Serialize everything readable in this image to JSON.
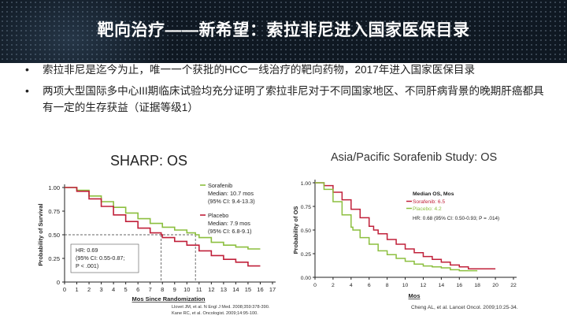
{
  "slide": {
    "title": "靶向治疗——新希望：索拉非尼进入国家医保目录",
    "bullets": [
      {
        "symbol": "•",
        "text": "索拉非尼是迄今为止，唯一一个获批的HCC一线治疗的靶向药物，2017年进入国家医保目录"
      },
      {
        "symbol": "•",
        "text": "两项大型国际多中心III期临床试验均充分证明了索拉非尼对于不同国家地区、不同肝病背景的晚期肝癌都具有一定的生存获益（证据等级1）"
      }
    ]
  },
  "chart_data": [
    {
      "type": "line",
      "title": "SHARP: OS",
      "xlabel": "Mos Since Randomization",
      "ylabel": "Probability of Survival",
      "xlim": [
        0,
        17
      ],
      "ylim": [
        0,
        1
      ],
      "xticks": [
        "0",
        "1",
        "2",
        "3",
        "4",
        "5",
        "6",
        "7",
        "8",
        "9",
        "10",
        "11",
        "12",
        "13",
        "14",
        "15",
        "16",
        "17"
      ],
      "yticks": [
        "0",
        "0.25",
        "0.50",
        "0.75",
        "1.00"
      ],
      "series": [
        {
          "name": "Sorafenib",
          "color": "#8cbf3f",
          "x": [
            0,
            1,
            2,
            3,
            4,
            5,
            6,
            7,
            8,
            9,
            10,
            10.7,
            11,
            12,
            13,
            14,
            15,
            16
          ],
          "y": [
            1.0,
            0.97,
            0.91,
            0.85,
            0.79,
            0.73,
            0.67,
            0.62,
            0.58,
            0.55,
            0.52,
            0.5,
            0.47,
            0.42,
            0.39,
            0.37,
            0.35,
            0.35
          ]
        },
        {
          "name": "Placebo",
          "color": "#c0203a",
          "x": [
            0,
            1,
            2,
            3,
            4,
            5,
            6,
            7,
            7.9,
            8,
            9,
            10,
            11,
            12,
            13,
            14,
            15,
            16
          ],
          "y": [
            1.0,
            0.96,
            0.88,
            0.8,
            0.71,
            0.64,
            0.57,
            0.52,
            0.5,
            0.47,
            0.43,
            0.39,
            0.33,
            0.28,
            0.24,
            0.21,
            0.17,
            0.17
          ]
        }
      ],
      "legend": [
        {
          "name": "Sorafenib",
          "lines": [
            "Median: 10.7 mos",
            "(95% CI: 9.4-13.3)"
          ]
        },
        {
          "name": "Placebo",
          "lines": [
            "Median: 7.9 mos",
            "(95% CI: 6.8-9.1)"
          ]
        }
      ],
      "annotation": [
        "HR: 0.69",
        "(95% CI: 0.55-0.87;",
        "P < .001)"
      ],
      "reference": [
        "Llovet JM, et al. N Engl J Med. 2008;359:378-390.",
        "Kane RC, et al. Oncologist. 2009;14:95-100."
      ]
    },
    {
      "type": "line",
      "title": "Asia/Pacific Sorafenib Study: OS",
      "xlabel": "Mos",
      "ylabel": "Probability of OS",
      "xlim": [
        0,
        22
      ],
      "ylim": [
        0,
        1
      ],
      "xticks": [
        "0",
        "2",
        "4",
        "6",
        "8",
        "10",
        "12",
        "14",
        "16",
        "18",
        "20",
        "22"
      ],
      "yticks": [
        "0.00",
        "0.25",
        "0.50",
        "0.75",
        "1.00"
      ],
      "series": [
        {
          "name": "Sorafenib",
          "color": "#c0203a",
          "x": [
            0,
            1,
            2,
            3,
            4,
            5,
            6,
            6.5,
            7,
            8,
            9,
            10,
            11,
            12,
            13,
            14,
            15,
            16,
            17,
            18,
            19,
            20
          ],
          "y": [
            1.0,
            0.97,
            0.9,
            0.82,
            0.72,
            0.63,
            0.54,
            0.5,
            0.46,
            0.4,
            0.35,
            0.3,
            0.26,
            0.22,
            0.19,
            0.16,
            0.13,
            0.11,
            0.09,
            0.09,
            0.09,
            0.09
          ]
        },
        {
          "name": "Placebo",
          "color": "#8cbf3f",
          "x": [
            0,
            1,
            2,
            3,
            4,
            4.2,
            5,
            6,
            7,
            8,
            9,
            10,
            11,
            12,
            13,
            14,
            15,
            16,
            17,
            18
          ],
          "y": [
            1.0,
            0.93,
            0.8,
            0.66,
            0.53,
            0.5,
            0.42,
            0.35,
            0.28,
            0.24,
            0.2,
            0.17,
            0.14,
            0.12,
            0.11,
            0.1,
            0.08,
            0.07,
            0.07,
            0.07
          ]
        }
      ],
      "legend_title": "Median OS, Mos",
      "legend": [
        {
          "name": "Sorafenib: 6.5"
        },
        {
          "name": "Placebo: 4.2"
        }
      ],
      "annotation": [
        "HR: 0.68 (95% CI: 0.50-0.93; P = .014)"
      ],
      "reference": [
        "Cheng AL, et al. Lancet Oncol. 2009;10:25-34."
      ]
    }
  ]
}
